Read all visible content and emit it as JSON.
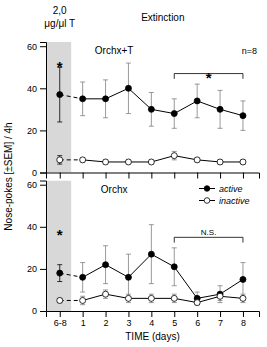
{
  "chart_data": [
    {
      "type": "line",
      "title": "Orchx+T",
      "subtitle": "n=8",
      "ylabel": "Nose-pokes [±SEM] / 4h",
      "x": [
        0,
        1,
        2,
        3,
        4,
        5,
        6,
        7,
        8
      ],
      "series": [
        {
          "values": [
            37,
            35,
            35,
            40,
            30,
            28,
            34,
            30,
            27
          ],
          "errors": [
            13,
            8,
            9,
            12,
            8,
            7,
            8,
            9,
            7
          ],
          "color": "black",
          "marker": "filled-circle",
          "line_style": "dashed-baseline"
        },
        {
          "values": [
            6,
            6,
            5,
            5,
            5,
            8,
            6,
            5,
            5
          ],
          "errors": [
            2,
            1,
            1,
            1,
            1,
            2,
            1,
            1,
            1
          ],
          "color": "black",
          "marker": "open-circle",
          "line_style": "dashed-baseline"
        }
      ],
      "xlim": [
        -0.6,
        8.7
      ],
      "xticks": [
        {
          "value": 0,
          "label": "6-8"
        },
        1,
        2,
        3,
        4,
        5,
        6,
        7,
        8
      ],
      "ylim": [
        0,
        62
      ],
      "yticks": [
        0,
        20,
        40,
        60
      ],
      "grid": false,
      "tick_labels": "y",
      "spans": [
        {
          "x": [
            -0.55,
            0.5
          ],
          "color": "#d8d8d8"
        }
      ],
      "annotations": [
        {
          "text": "*",
          "x": 0,
          "y": 52
        }
      ],
      "brackets": [
        {
          "x": [
            5,
            8
          ],
          "y": 47,
          "text": "*"
        }
      ],
      "header_labels": [
        {
          "lines": [
            "2,0",
            "μg/μl T"
          ],
          "x": 0
        },
        {
          "lines": [
            "Extinction"
          ],
          "x": 4.5
        }
      ]
    },
    {
      "type": "line",
      "title": "Orchx",
      "xlabel": "TIME (days)",
      "x": [
        0,
        1,
        2,
        3,
        4,
        5,
        6,
        7,
        8
      ],
      "series": [
        {
          "name": "active",
          "values": [
            18,
            16,
            22,
            16,
            27,
            21,
            6,
            8,
            15
          ],
          "errors": [
            4,
            7,
            9,
            11,
            14,
            9,
            3,
            4,
            8
          ],
          "color": "black",
          "marker": "filled-circle",
          "line_style": "dashed-baseline"
        },
        {
          "name": "inactive",
          "values": [
            5,
            5,
            8,
            6,
            6,
            6,
            4,
            7,
            6
          ],
          "errors": [
            1,
            2,
            2,
            2,
            2,
            2,
            1,
            2,
            2
          ],
          "color": "black",
          "marker": "open-circle",
          "line_style": "dashed-baseline"
        }
      ],
      "xlim": [
        -0.6,
        8.7
      ],
      "xticks": [
        {
          "value": 0,
          "label": "6-8"
        },
        1,
        2,
        3,
        4,
        5,
        6,
        7,
        8
      ],
      "ylim": [
        0,
        62
      ],
      "yticks": [
        0,
        20,
        40,
        60
      ],
      "grid": false,
      "tick_labels": true,
      "legend": "upper right",
      "spans": [
        {
          "x": [
            -0.55,
            0.5
          ],
          "color": "#d8d8d8"
        }
      ],
      "annotations": [
        {
          "text": "*",
          "x": 0,
          "y": 38
        }
      ],
      "brackets": [
        {
          "x": [
            5,
            8
          ],
          "y": 35,
          "text": "N.S."
        }
      ]
    }
  ]
}
